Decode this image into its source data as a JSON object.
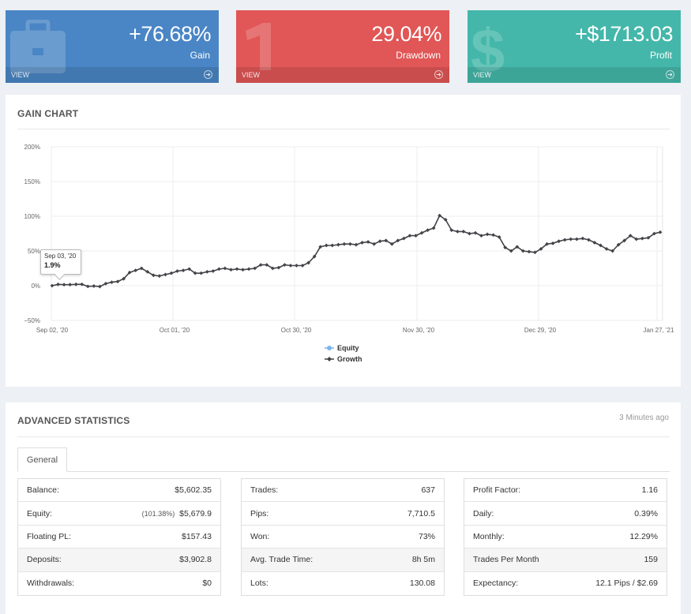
{
  "cards": [
    {
      "value": "+76.68%",
      "label": "Gain",
      "view": "VIEW",
      "icon": "briefcase-icon"
    },
    {
      "value": "29.04%",
      "label": "Drawdown",
      "view": "VIEW",
      "icon": "one-icon"
    },
    {
      "value": "+$1713.03",
      "label": "Profit",
      "view": "VIEW",
      "icon": "dollar-icon"
    }
  ],
  "gain_chart": {
    "title": "GAIN CHART",
    "tooltip": {
      "date": "Sep 03, '20",
      "value": "1.9%"
    }
  },
  "chart_data": {
    "type": "line",
    "title": "",
    "xlabel": "",
    "ylabel": "",
    "y_ticks": [
      "200%",
      "150%",
      "100%",
      "50%",
      "0%",
      "−50%"
    ],
    "x_ticks": [
      "Sep 02, '20",
      "Oct 01, '20",
      "Oct 30, '20",
      "Nov 30, '20",
      "Dec 29, '20",
      "Jan 27, '21"
    ],
    "ylim": [
      -50,
      200
    ],
    "legend_position": "bottom",
    "grid": true,
    "colors": {
      "equity": "#7cb5ec",
      "growth": "#434348"
    },
    "series": [
      {
        "name": "Equity"
      },
      {
        "name": "Growth",
        "values": [
          0,
          1.9,
          1.5,
          1.5,
          1.9,
          2.0,
          -1.0,
          -0.5,
          -1.2,
          3.0,
          5.0,
          6.0,
          10.0,
          19.0,
          22.0,
          25.0,
          20.0,
          15.0,
          14.0,
          16.0,
          18.0,
          21.0,
          22.0,
          24.0,
          18.0,
          18.0,
          20.0,
          21.0,
          24.0,
          25.0,
          23.0,
          24.0,
          23.0,
          24.0,
          25.0,
          30.0,
          30.0,
          25.0,
          26.0,
          30.0,
          29.0,
          29.0,
          29.0,
          33.0,
          42.0,
          56.0,
          58.0,
          58.0,
          59.0,
          60.0,
          60.0,
          59.0,
          62.0,
          63.0,
          60.0,
          64.0,
          65.0,
          60.0,
          65.0,
          68.0,
          72.0,
          72.0,
          76.0,
          80.0,
          83.0,
          101.0,
          95.0,
          80.0,
          78.0,
          78.0,
          75.0,
          76.0,
          72.0,
          74.0,
          73.0,
          70.0,
          55.0,
          50.0,
          56.0,
          50.0,
          49.0,
          48.0,
          53.0,
          60.0,
          61.0,
          64.0,
          66.0,
          67.0,
          67.0,
          68.0,
          66.0,
          62.0,
          58.0,
          53.0,
          50.0,
          59.0,
          65.0,
          72.0,
          67.0,
          68.0,
          69.0,
          75.0,
          77.0
        ]
      }
    ]
  },
  "advanced_statistics": {
    "title": "ADVANCED STATISTICS",
    "updated": "3 Minutes ago",
    "tab": "General",
    "columns": [
      [
        {
          "label": "Balance:",
          "value": "$5,602.35"
        },
        {
          "label": "Equity:",
          "extra": "(101.38%)",
          "value": "$5,679.9"
        },
        {
          "label": "Floating PL:",
          "value": "$157.43"
        },
        {
          "label": "Deposits:",
          "value": "$3,902.8"
        },
        {
          "label": "Withdrawals:",
          "value": "$0"
        }
      ],
      [
        {
          "label": "Trades:",
          "value": "637"
        },
        {
          "label": "Pips:",
          "value": "7,710.5"
        },
        {
          "label": "Won:",
          "value": "73%"
        },
        {
          "label": "Avg. Trade Time:",
          "value": "8h 5m"
        },
        {
          "label": "Lots:",
          "value": "130.08"
        }
      ],
      [
        {
          "label": "Profit Factor:",
          "value": "1.16"
        },
        {
          "label": "Daily:",
          "value": "0.39%"
        },
        {
          "label": "Monthly:",
          "value": "12.29%"
        },
        {
          "label": "Trades Per Month",
          "value": "159"
        },
        {
          "label": "Expectancy:",
          "value": "12.1 Pips / $2.69"
        }
      ]
    ]
  }
}
